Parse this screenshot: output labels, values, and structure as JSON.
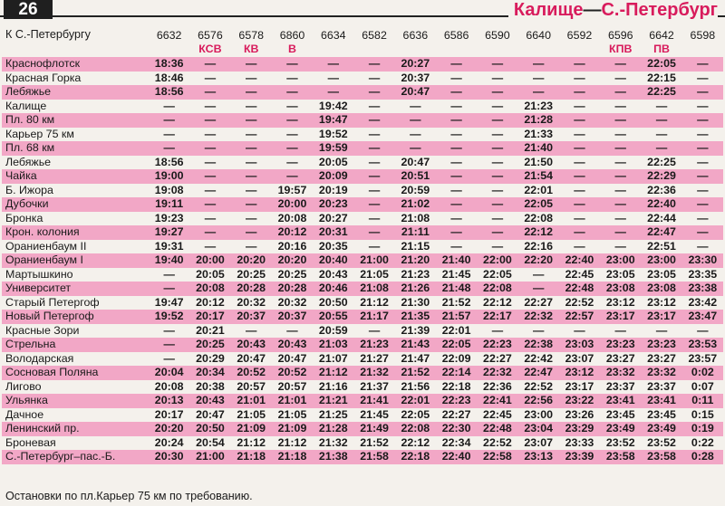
{
  "page_number": "26",
  "route": {
    "from": "Калище",
    "dash": "—",
    "to": "С.-Петербург"
  },
  "direction_label": "К С.-Петербургу",
  "trains": [
    {
      "num": "6632",
      "mark": ""
    },
    {
      "num": "6576",
      "mark": "КСВ"
    },
    {
      "num": "6578",
      "mark": "КВ"
    },
    {
      "num": "6860",
      "mark": "В"
    },
    {
      "num": "6634",
      "mark": ""
    },
    {
      "num": "6582",
      "mark": ""
    },
    {
      "num": "6636",
      "mark": ""
    },
    {
      "num": "6586",
      "mark": ""
    },
    {
      "num": "6590",
      "mark": ""
    },
    {
      "num": "6640",
      "mark": ""
    },
    {
      "num": "6592",
      "mark": ""
    },
    {
      "num": "6596",
      "mark": "КПВ"
    },
    {
      "num": "6642",
      "mark": "ПВ"
    },
    {
      "num": "6598",
      "mark": ""
    }
  ],
  "rows": [
    {
      "station": "Краснофлотск",
      "times": [
        "18:36",
        "—",
        "—",
        "—",
        "—",
        "—",
        "20:27",
        "—",
        "—",
        "—",
        "—",
        "—",
        "22:05",
        "—"
      ]
    },
    {
      "station": "Красная Горка",
      "times": [
        "18:46",
        "—",
        "—",
        "—",
        "—",
        "—",
        "20:37",
        "—",
        "—",
        "—",
        "—",
        "—",
        "22:15",
        "—"
      ]
    },
    {
      "station": "Лебяжье",
      "times": [
        "18:56",
        "—",
        "—",
        "—",
        "—",
        "—",
        "20:47",
        "—",
        "—",
        "—",
        "—",
        "—",
        "22:25",
        "—"
      ]
    },
    {
      "station": "Калище",
      "times": [
        "—",
        "—",
        "—",
        "—",
        "19:42",
        "—",
        "—",
        "—",
        "—",
        "21:23",
        "—",
        "—",
        "—",
        "—"
      ]
    },
    {
      "station": "Пл. 80 км",
      "times": [
        "—",
        "—",
        "—",
        "—",
        "19:47",
        "—",
        "—",
        "—",
        "—",
        "21:28",
        "—",
        "—",
        "—",
        "—"
      ]
    },
    {
      "station": "Карьер 75 км",
      "times": [
        "—",
        "—",
        "—",
        "—",
        "19:52",
        "—",
        "—",
        "—",
        "—",
        "21:33",
        "—",
        "—",
        "—",
        "—"
      ]
    },
    {
      "station": "Пл. 68 км",
      "times": [
        "—",
        "—",
        "—",
        "—",
        "19:59",
        "—",
        "—",
        "—",
        "—",
        "21:40",
        "—",
        "—",
        "—",
        "—"
      ]
    },
    {
      "station": "Лебяжье",
      "times": [
        "18:56",
        "—",
        "—",
        "—",
        "20:05",
        "—",
        "20:47",
        "—",
        "—",
        "21:50",
        "—",
        "—",
        "22:25",
        "—"
      ]
    },
    {
      "station": "Чайка",
      "times": [
        "19:00",
        "—",
        "—",
        "—",
        "20:09",
        "—",
        "20:51",
        "—",
        "—",
        "21:54",
        "—",
        "—",
        "22:29",
        "—"
      ]
    },
    {
      "station": "Б. Ижора",
      "times": [
        "19:08",
        "—",
        "—",
        "19:57",
        "20:19",
        "—",
        "20:59",
        "—",
        "—",
        "22:01",
        "—",
        "—",
        "22:36",
        "—"
      ]
    },
    {
      "station": "Дубочки",
      "times": [
        "19:11",
        "—",
        "—",
        "20:00",
        "20:23",
        "—",
        "21:02",
        "—",
        "—",
        "22:05",
        "—",
        "—",
        "22:40",
        "—"
      ]
    },
    {
      "station": "Бронка",
      "times": [
        "19:23",
        "—",
        "—",
        "20:08",
        "20:27",
        "—",
        "21:08",
        "—",
        "—",
        "22:08",
        "—",
        "—",
        "22:44",
        "—"
      ]
    },
    {
      "station": "Крон. колония",
      "times": [
        "19:27",
        "—",
        "—",
        "20:12",
        "20:31",
        "—",
        "21:11",
        "—",
        "—",
        "22:12",
        "—",
        "—",
        "22:47",
        "—"
      ]
    },
    {
      "station": "Ораниенбаум II",
      "times": [
        "19:31",
        "—",
        "—",
        "20:16",
        "20:35",
        "—",
        "21:15",
        "—",
        "—",
        "22:16",
        "—",
        "—",
        "22:51",
        "—"
      ]
    },
    {
      "station": "Ораниенбаум I",
      "times": [
        "19:40",
        "20:00",
        "20:20",
        "20:20",
        "20:40",
        "21:00",
        "21:20",
        "21:40",
        "22:00",
        "22:20",
        "22:40",
        "23:00",
        "23:00",
        "23:30"
      ]
    },
    {
      "station": "Мартышкино",
      "times": [
        "—",
        "20:05",
        "20:25",
        "20:25",
        "20:43",
        "21:05",
        "21:23",
        "21:45",
        "22:05",
        "—",
        "22:45",
        "23:05",
        "23:05",
        "23:35"
      ]
    },
    {
      "station": "Университет",
      "times": [
        "—",
        "20:08",
        "20:28",
        "20:28",
        "20:46",
        "21:08",
        "21:26",
        "21:48",
        "22:08",
        "—",
        "22:48",
        "23:08",
        "23:08",
        "23:38"
      ]
    },
    {
      "station": "Старый Петергоф",
      "times": [
        "19:47",
        "20:12",
        "20:32",
        "20:32",
        "20:50",
        "21:12",
        "21:30",
        "21:52",
        "22:12",
        "22:27",
        "22:52",
        "23:12",
        "23:12",
        "23:42"
      ]
    },
    {
      "station": "Новый Петергоф",
      "times": [
        "19:52",
        "20:17",
        "20:37",
        "20:37",
        "20:55",
        "21:17",
        "21:35",
        "21:57",
        "22:17",
        "22:32",
        "22:57",
        "23:17",
        "23:17",
        "23:47"
      ]
    },
    {
      "station": "Красные Зори",
      "times": [
        "—",
        "20:21",
        "—",
        "—",
        "20:59",
        "—",
        "21:39",
        "22:01",
        "—",
        "—",
        "—",
        "—",
        "—",
        "—"
      ]
    },
    {
      "station": "Стрельна",
      "times": [
        "—",
        "20:25",
        "20:43",
        "20:43",
        "21:03",
        "21:23",
        "21:43",
        "22:05",
        "22:23",
        "22:38",
        "23:03",
        "23:23",
        "23:23",
        "23:53"
      ]
    },
    {
      "station": "Володарская",
      "times": [
        "—",
        "20:29",
        "20:47",
        "20:47",
        "21:07",
        "21:27",
        "21:47",
        "22:09",
        "22:27",
        "22:42",
        "23:07",
        "23:27",
        "23:27",
        "23:57"
      ]
    },
    {
      "station": "Сосновая Поляна",
      "times": [
        "20:04",
        "20:34",
        "20:52",
        "20:52",
        "21:12",
        "21:32",
        "21:52",
        "22:14",
        "22:32",
        "22:47",
        "23:12",
        "23:32",
        "23:32",
        "0:02"
      ]
    },
    {
      "station": "Лигово",
      "times": [
        "20:08",
        "20:38",
        "20:57",
        "20:57",
        "21:16",
        "21:37",
        "21:56",
        "22:18",
        "22:36",
        "22:52",
        "23:17",
        "23:37",
        "23:37",
        "0:07"
      ]
    },
    {
      "station": "Ульянка",
      "times": [
        "20:13",
        "20:43",
        "21:01",
        "21:01",
        "21:21",
        "21:41",
        "22:01",
        "22:23",
        "22:41",
        "22:56",
        "23:22",
        "23:41",
        "23:41",
        "0:11"
      ]
    },
    {
      "station": "Дачное",
      "times": [
        "20:17",
        "20:47",
        "21:05",
        "21:05",
        "21:25",
        "21:45",
        "22:05",
        "22:27",
        "22:45",
        "23:00",
        "23:26",
        "23:45",
        "23:45",
        "0:15"
      ]
    },
    {
      "station": "Ленинский пр.",
      "times": [
        "20:20",
        "20:50",
        "21:09",
        "21:09",
        "21:28",
        "21:49",
        "22:08",
        "22:30",
        "22:48",
        "23:04",
        "23:29",
        "23:49",
        "23:49",
        "0:19"
      ]
    },
    {
      "station": "Броневая",
      "times": [
        "20:24",
        "20:54",
        "21:12",
        "21:12",
        "21:32",
        "21:52",
        "22:12",
        "22:34",
        "22:52",
        "23:07",
        "23:33",
        "23:52",
        "23:52",
        "0:22"
      ]
    },
    {
      "station": "С.-Петербург–пас.-Б.",
      "times": [
        "20:30",
        "21:00",
        "21:18",
        "21:18",
        "21:38",
        "21:58",
        "22:18",
        "22:40",
        "22:58",
        "23:13",
        "23:39",
        "23:58",
        "23:58",
        "0:28"
      ]
    }
  ],
  "footnote": "Остановки по пл.Карьер 75 км по требованию.",
  "colors": {
    "stripe": "#f2a7c6",
    "accent": "#d81b5c",
    "paper": "#f4f1ec"
  }
}
